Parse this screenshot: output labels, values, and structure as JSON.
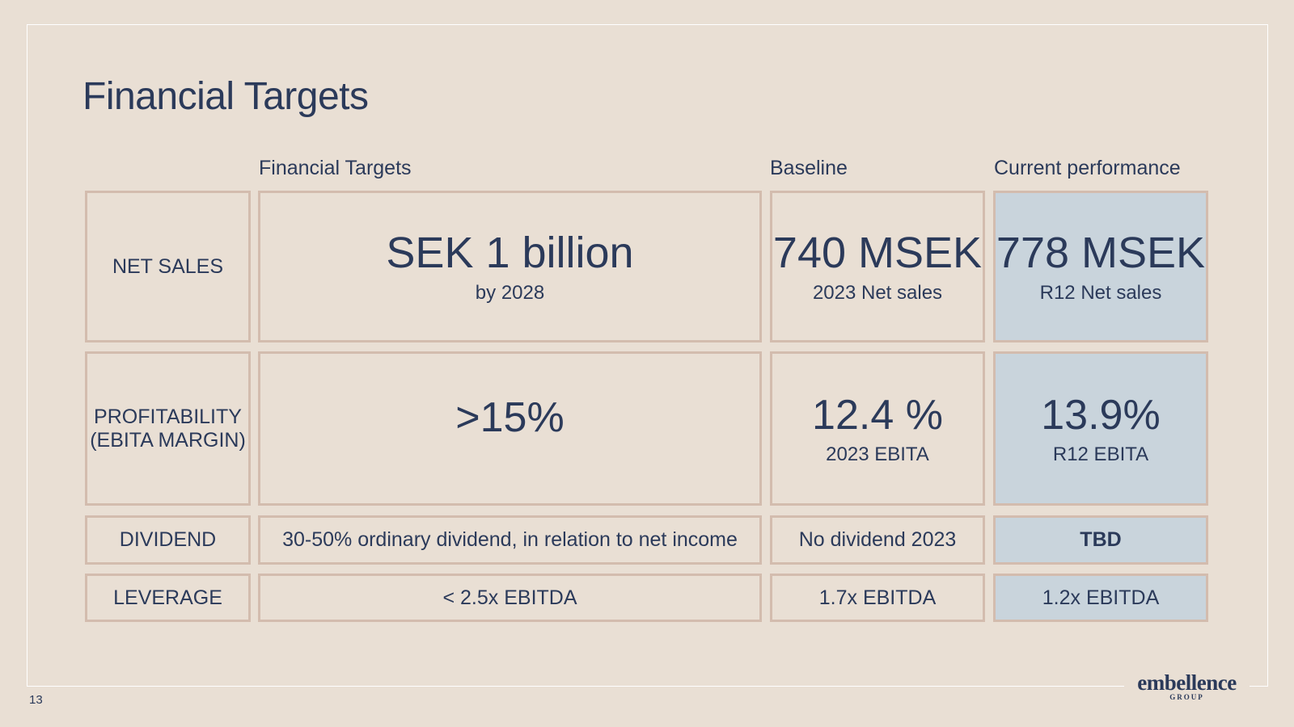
{
  "title": "Financial Targets",
  "columns": {
    "targets": "Financial Targets",
    "baseline": "Baseline",
    "current": "Current performance"
  },
  "rows": [
    {
      "label": "NET SALES",
      "target_main": "SEK 1 billion",
      "target_sub": "by 2028",
      "baseline_main": "740 MSEK",
      "baseline_sub": "2023 Net sales",
      "current_main": "778 MSEK",
      "current_sub": "R12 Net sales"
    },
    {
      "label_line1": "PROFITABILITY",
      "label_line2": "(EBITA MARGIN)",
      "target_main": ">15%",
      "baseline_main": "12.4 %",
      "baseline_sub": "2023 EBITA",
      "current_main": "13.9%",
      "current_sub": "R12 EBITA"
    },
    {
      "label": "DIVIDEND",
      "target_main": "30-50% ordinary dividend, in relation to net income",
      "baseline_main": "No dividend 2023",
      "current_main": "TBD"
    },
    {
      "label": "LEVERAGE",
      "target_main": "< 2.5x EBITDA",
      "baseline_main": "1.7x EBITDA",
      "current_main": "1.2x EBITDA"
    }
  ],
  "page_number": "13",
  "logo": {
    "word": "embellence",
    "group": "GROUP"
  },
  "colors": {
    "background": "#e9dfd4",
    "text": "#2b3a5a",
    "border": "#d3bcae",
    "highlight": "#c9d4dc"
  }
}
